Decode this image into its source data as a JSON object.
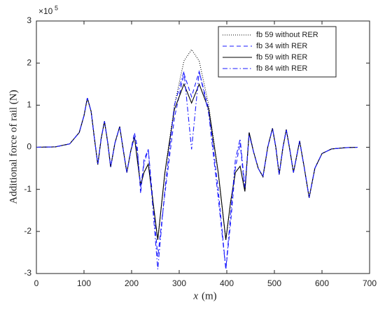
{
  "chart_data": {
    "type": "line",
    "xlabel": {
      "var": "x",
      "unit": "(m)"
    },
    "ylabel": "Additional force of rail (N)",
    "y_multiplier": {
      "base": "×10",
      "exponent": "5"
    },
    "xlim": [
      0,
      700
    ],
    "xticks": [
      0,
      100,
      200,
      300,
      400,
      500,
      600,
      700
    ],
    "ylim": [
      -3,
      3
    ],
    "yticks": [
      -3,
      -2,
      -1,
      0,
      1,
      2,
      3
    ],
    "legend": "upper right",
    "x": [
      0,
      40,
      70,
      90,
      100,
      107,
      115,
      122,
      129,
      136,
      143,
      150,
      156,
      165,
      175,
      183,
      190,
      198,
      206,
      212,
      219,
      226,
      235,
      245,
      255,
      270,
      290,
      310,
      326,
      342,
      362,
      382,
      398,
      408,
      418,
      428,
      438,
      447,
      456,
      466,
      476,
      486,
      496,
      503,
      510,
      518,
      525,
      533,
      540,
      547,
      553,
      563,
      573,
      585,
      600,
      620,
      650,
      675
    ],
    "series": [
      {
        "name": "fb 59 without RER",
        "color": "#000000",
        "dash": "dotted",
        "values": [
          0,
          0.01,
          0.08,
          0.35,
          0.75,
          1.17,
          0.85,
          0.2,
          -0.41,
          0.2,
          0.62,
          0.1,
          -0.47,
          0.1,
          0.49,
          -0.1,
          -0.6,
          -0.1,
          0.25,
          -0.3,
          -0.9,
          -0.6,
          -0.4,
          -1.3,
          -2.2,
          -0.6,
          1.0,
          2.05,
          2.32,
          2.05,
          1.0,
          -0.6,
          -2.2,
          -1.3,
          -0.6,
          -0.45,
          -1.05,
          0.35,
          -0.1,
          -0.5,
          -0.7,
          0.0,
          0.45,
          0.0,
          -0.65,
          0.0,
          0.42,
          -0.1,
          -0.6,
          -0.2,
          0.15,
          -0.5,
          -1.2,
          -0.5,
          -0.15,
          -0.04,
          -0.01,
          0
        ]
      },
      {
        "name": "fb 34 with RER",
        "color": "#1a1aff",
        "dash": "dashed",
        "values": [
          0,
          0.01,
          0.08,
          0.35,
          0.75,
          1.17,
          0.85,
          0.2,
          -0.41,
          0.2,
          0.62,
          0.1,
          -0.47,
          0.1,
          0.49,
          -0.1,
          -0.6,
          -0.1,
          0.35,
          0.0,
          -1.1,
          -0.3,
          -0.05,
          -1.3,
          -2.6,
          -1.1,
          0.7,
          1.75,
          1.2,
          1.8,
          0.9,
          -1.0,
          -2.9,
          -1.8,
          -0.5,
          0.1,
          -1.05,
          0.35,
          -0.1,
          -0.5,
          -0.7,
          0.0,
          0.45,
          0.0,
          -0.65,
          0.0,
          0.42,
          -0.1,
          -0.6,
          -0.2,
          0.15,
          -0.5,
          -1.2,
          -0.5,
          -0.15,
          -0.04,
          -0.01,
          0
        ]
      },
      {
        "name": "fb 59 with RER",
        "color": "#000000",
        "dash": "solid",
        "values": [
          0,
          0.01,
          0.08,
          0.35,
          0.75,
          1.17,
          0.85,
          0.2,
          -0.41,
          0.2,
          0.62,
          0.1,
          -0.47,
          0.1,
          0.49,
          -0.1,
          -0.6,
          -0.1,
          0.25,
          -0.3,
          -0.9,
          -0.6,
          -0.4,
          -1.3,
          -2.2,
          -0.6,
          0.9,
          1.5,
          1.05,
          1.5,
          0.9,
          -0.6,
          -2.2,
          -1.3,
          -0.6,
          -0.45,
          -1.05,
          0.35,
          -0.1,
          -0.5,
          -0.7,
          0.0,
          0.45,
          0.0,
          -0.65,
          0.0,
          0.42,
          -0.1,
          -0.6,
          -0.2,
          0.15,
          -0.5,
          -1.2,
          -0.5,
          -0.15,
          -0.04,
          -0.01,
          0
        ]
      },
      {
        "name": "fb 84 with RER",
        "color": "#1a1aff",
        "dash": "dashdot",
        "values": [
          0,
          0.01,
          0.08,
          0.35,
          0.75,
          1.17,
          0.85,
          0.2,
          -0.41,
          0.2,
          0.62,
          0.1,
          -0.47,
          0.1,
          0.49,
          -0.1,
          -0.6,
          -0.1,
          0.25,
          -0.1,
          -0.95,
          -0.4,
          -0.05,
          -1.5,
          -2.9,
          -1.0,
          1.0,
          1.8,
          -0.05,
          1.8,
          0.8,
          -1.2,
          -2.9,
          -1.6,
          -0.3,
          0.2,
          -0.95,
          0.3,
          -0.1,
          -0.5,
          -0.7,
          0.0,
          0.45,
          0.0,
          -0.65,
          0.0,
          0.42,
          -0.1,
          -0.6,
          -0.2,
          0.15,
          -0.5,
          -1.2,
          -0.5,
          -0.15,
          -0.04,
          -0.01,
          0
        ]
      }
    ]
  }
}
